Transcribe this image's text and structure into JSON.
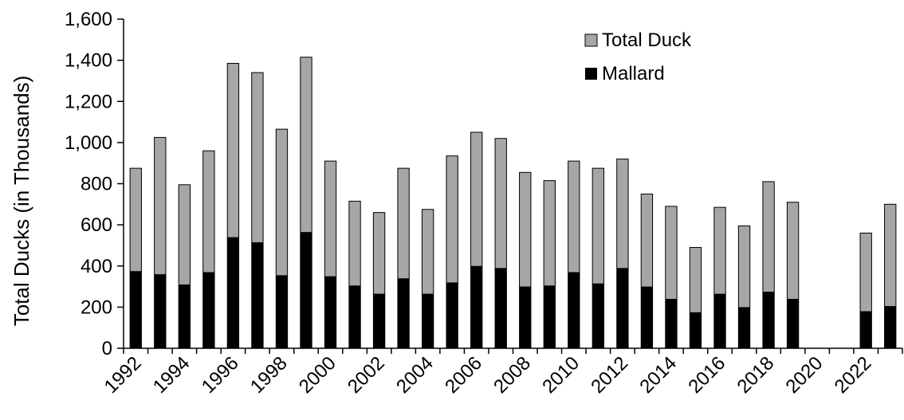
{
  "chart_data": {
    "type": "bar",
    "stacked": "overlay",
    "title": "",
    "xlabel": "",
    "ylabel": "Total Ducks (in Thousands)",
    "ylim": [
      0,
      1600
    ],
    "y_ticks": [
      "0",
      "200",
      "400",
      "600",
      "800",
      "1,000",
      "1,200",
      "1,400",
      "1,600"
    ],
    "y_tick_values": [
      0,
      200,
      400,
      600,
      800,
      1000,
      1200,
      1400,
      1600
    ],
    "categories": [
      "1992",
      "1993",
      "1994",
      "1995",
      "1996",
      "1997",
      "1998",
      "1999",
      "2000",
      "2001",
      "2002",
      "2003",
      "2004",
      "2005",
      "2006",
      "2007",
      "2008",
      "2009",
      "2010",
      "2011",
      "2012",
      "2013",
      "2014",
      "2015",
      "2016",
      "2017",
      "2018",
      "2019",
      "2020",
      "2021",
      "2022",
      "2023"
    ],
    "x_tick_labels": [
      "1992",
      "",
      "1994",
      "",
      "1996",
      "",
      "1998",
      "",
      "2000",
      "",
      "2002",
      "",
      "2004",
      "",
      "2006",
      "",
      "2008",
      "",
      "2010",
      "",
      "2012",
      "",
      "2014",
      "",
      "2016",
      "",
      "2018",
      "",
      "2020",
      "",
      "2022",
      ""
    ],
    "series": [
      {
        "name": "Total Duck",
        "color": "#a6a6a6",
        "values": [
          875,
          1025,
          795,
          960,
          1385,
          1340,
          1065,
          1415,
          910,
          715,
          660,
          875,
          675,
          935,
          1050,
          1020,
          855,
          815,
          910,
          875,
          920,
          750,
          690,
          490,
          685,
          595,
          810,
          710,
          null,
          null,
          560,
          700
        ]
      },
      {
        "name": "Mallard",
        "color": "#000000",
        "values": [
          375,
          360,
          310,
          370,
          540,
          515,
          355,
          565,
          350,
          305,
          265,
          340,
          265,
          320,
          400,
          390,
          300,
          305,
          370,
          315,
          390,
          300,
          240,
          175,
          265,
          200,
          275,
          240,
          null,
          null,
          180,
          205
        ]
      }
    ],
    "legend": {
      "position": "top-right",
      "entries": [
        "Total Duck",
        "Mallard"
      ]
    },
    "grid": false
  }
}
